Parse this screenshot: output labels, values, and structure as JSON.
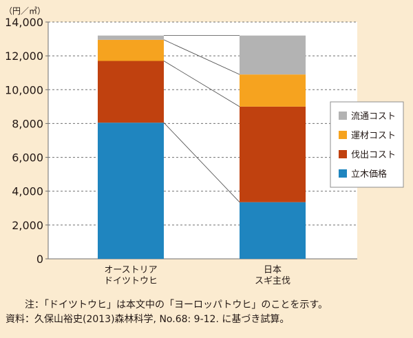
{
  "chart_data": {
    "type": "stacked-bar",
    "unit": "（円／㎥）",
    "categories": [
      [
        "オーストリア",
        "ドイツトウヒ"
      ],
      [
        "日本",
        "スギ主伐"
      ]
    ],
    "series": [
      {
        "name": "立木価格",
        "color": "#1f85bf",
        "values": [
          8050,
          3350
        ]
      },
      {
        "name": "伐出コスト",
        "color": "#c0410f",
        "values": [
          3650,
          5650
        ]
      },
      {
        "name": "運材コスト",
        "color": "#f6a31f",
        "values": [
          1250,
          1900
        ]
      },
      {
        "name": "流通コスト",
        "color": "#b3b3b3",
        "values": [
          250,
          2300
        ]
      }
    ],
    "legend_order": [
      "流通コスト",
      "運材コスト",
      "伐出コスト",
      "立木価格"
    ],
    "ylim": [
      0,
      14000
    ],
    "yticks": [
      0,
      2000,
      4000,
      6000,
      8000,
      10000,
      12000,
      14000
    ],
    "ytick_labels": [
      "0",
      "2,000",
      "4,000",
      "6,000",
      "8,000",
      "10,000",
      "12,000",
      "14,000"
    ],
    "grid": "dashed horizontal",
    "legend_position": "right"
  },
  "notes": {
    "note": "注：「ドイツトウヒ」は本文中の「ヨーロッパトウヒ」のことを示す。",
    "source": "資料：久保山裕史(2013)森林科学, No.68: 9-12. に基づき試算。"
  }
}
